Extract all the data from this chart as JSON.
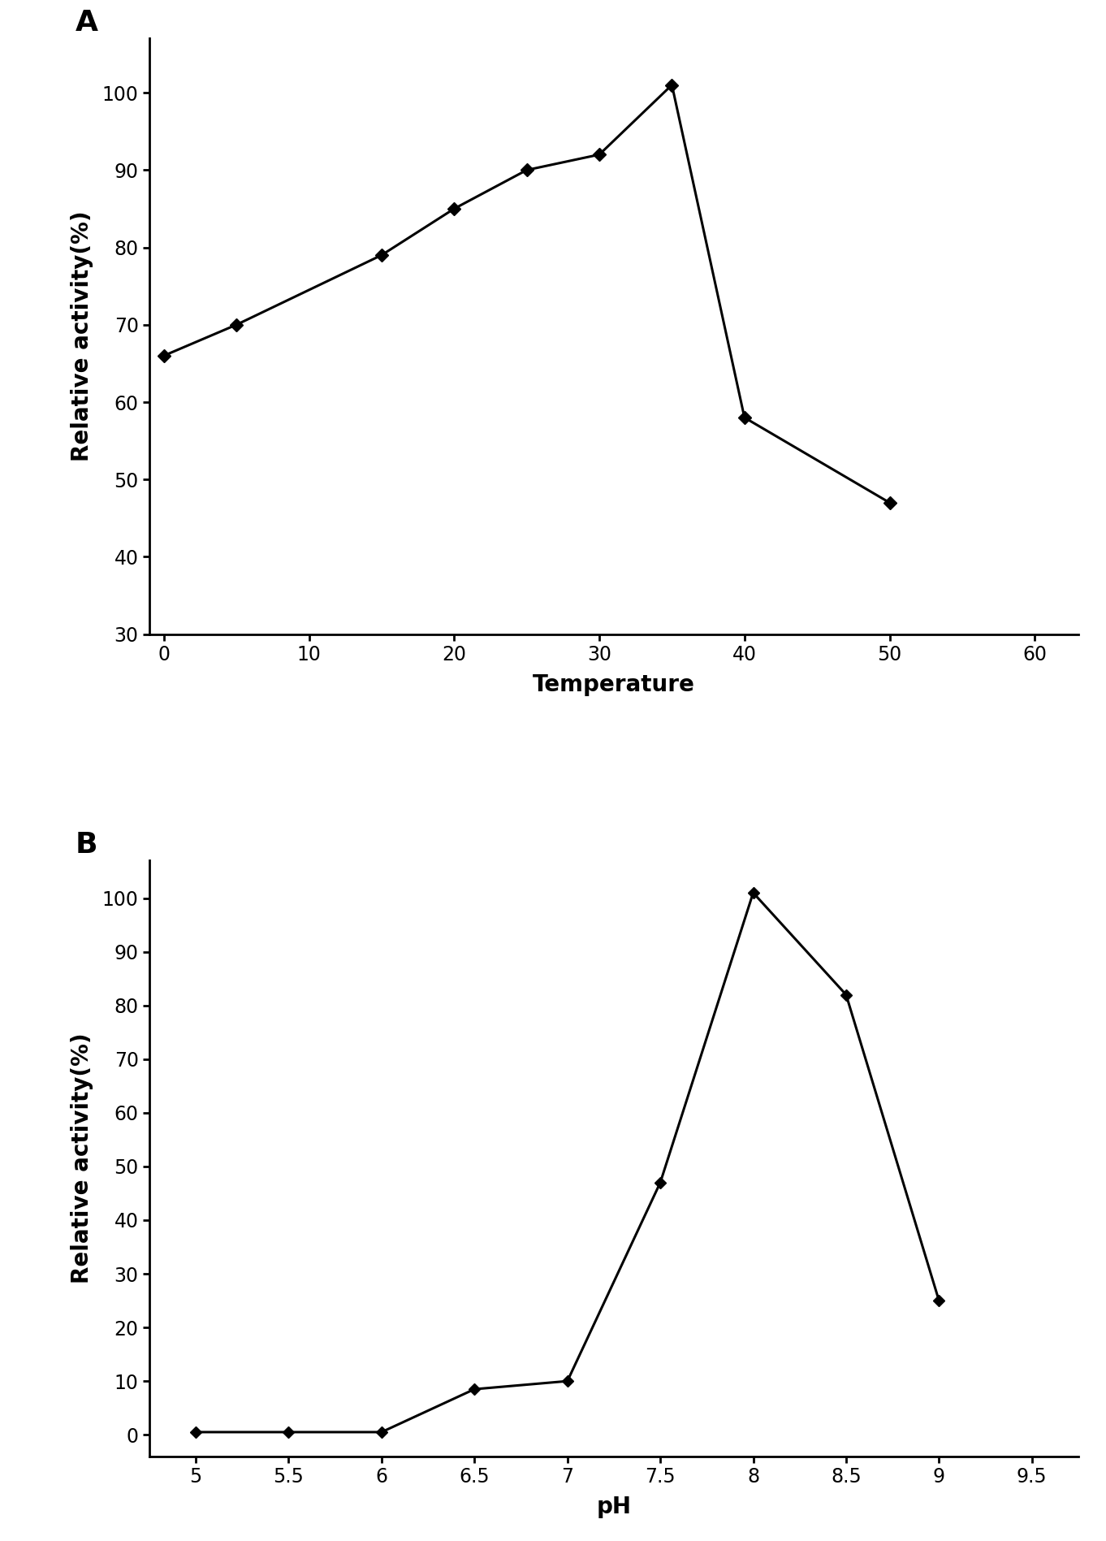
{
  "chart_A": {
    "label": "A",
    "x": [
      0,
      5,
      15,
      20,
      25,
      30,
      35,
      40,
      50
    ],
    "y": [
      66,
      70,
      79,
      85,
      90,
      92,
      101,
      58,
      47
    ],
    "xlabel": "Temperature",
    "ylabel": "Relative activity(%)",
    "xlim": [
      -1,
      63
    ],
    "ylim": [
      30,
      107
    ],
    "xticks": [
      0,
      10,
      20,
      30,
      40,
      50,
      60
    ],
    "yticks": [
      30,
      40,
      50,
      60,
      70,
      80,
      90,
      100
    ]
  },
  "chart_B": {
    "label": "B",
    "x": [
      5.0,
      5.5,
      6.0,
      6.5,
      7.0,
      7.5,
      8.0,
      8.5,
      9.0
    ],
    "y": [
      0.5,
      0.5,
      0.5,
      8.5,
      10,
      47,
      101,
      82,
      25
    ],
    "xlabel": "pH",
    "ylabel": "Relative activity(%)",
    "xlim": [
      4.75,
      9.75
    ],
    "ylim": [
      -4,
      107
    ],
    "xticks": [
      5,
      5.5,
      6,
      6.5,
      7,
      7.5,
      8,
      8.5,
      9,
      9.5
    ],
    "xtick_labels": [
      "5",
      "5.5",
      "6",
      "6.5",
      "7",
      "7.5",
      "8",
      "8.5",
      "9",
      "9.5"
    ],
    "yticks": [
      0,
      10,
      20,
      30,
      40,
      50,
      60,
      70,
      80,
      90,
      100
    ]
  },
  "line_color": "#000000",
  "marker": "D",
  "marker_size": 8,
  "marker_size_B": 7,
  "line_width": 2.2,
  "label_fontsize": 20,
  "tick_fontsize": 17,
  "panel_label_fontsize": 26,
  "background_color": "#ffffff"
}
